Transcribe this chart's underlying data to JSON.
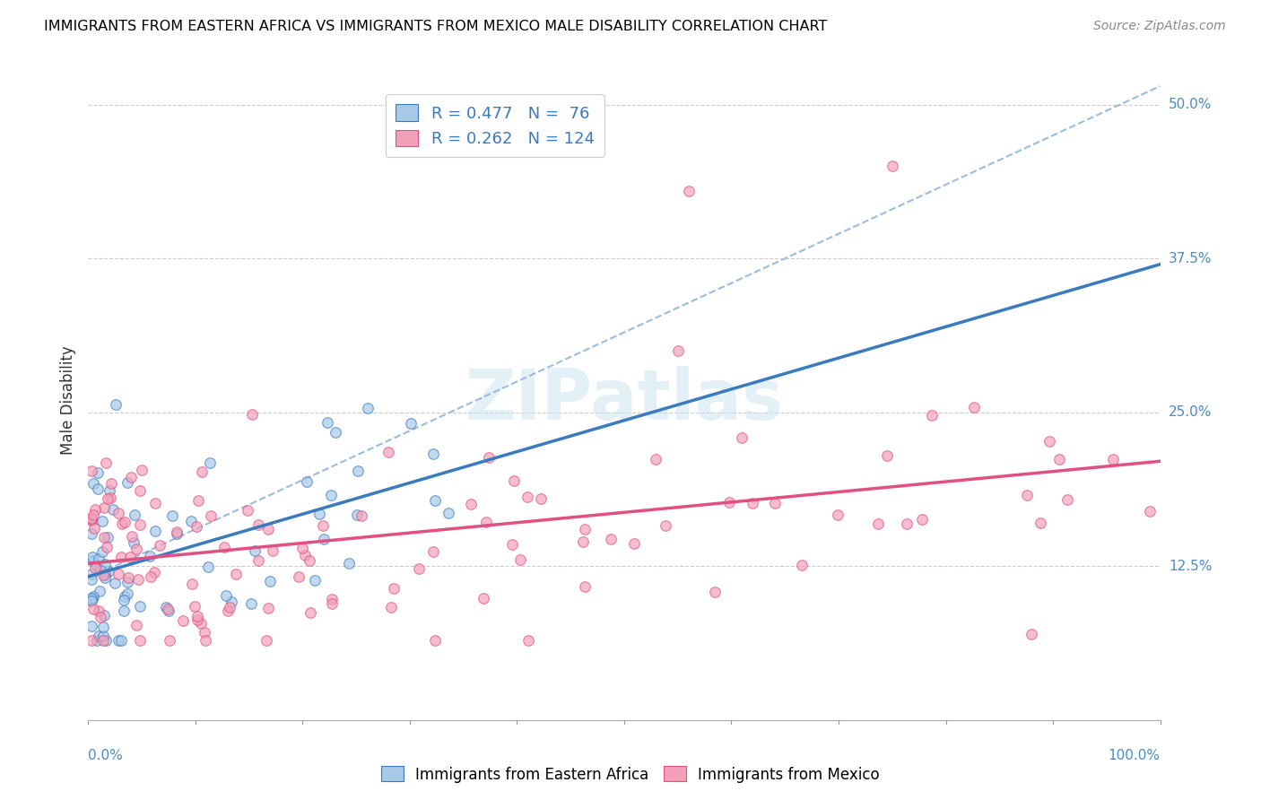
{
  "title": "IMMIGRANTS FROM EASTERN AFRICA VS IMMIGRANTS FROM MEXICO MALE DISABILITY CORRELATION CHART",
  "source": "Source: ZipAtlas.com",
  "ylabel": "Male Disability",
  "xlim": [
    0.0,
    1.0
  ],
  "ylim": [
    0.0,
    0.52
  ],
  "legend_r1": "R = 0.477",
  "legend_n1": "N =  76",
  "legend_r2": "R = 0.262",
  "legend_n2": "N = 124",
  "color_blue": "#a8c8e8",
  "color_pink": "#f4a0b8",
  "color_blue_line": "#3a7abf",
  "color_pink_line": "#e05080",
  "color_dash": "#9bbcdb",
  "ytick_vals": [
    0.125,
    0.25,
    0.375,
    0.5
  ],
  "ytick_labels": [
    "12.5%",
    "25.0%",
    "37.5%",
    "50.0%"
  ],
  "seed_ea": 12,
  "seed_mx": 99
}
